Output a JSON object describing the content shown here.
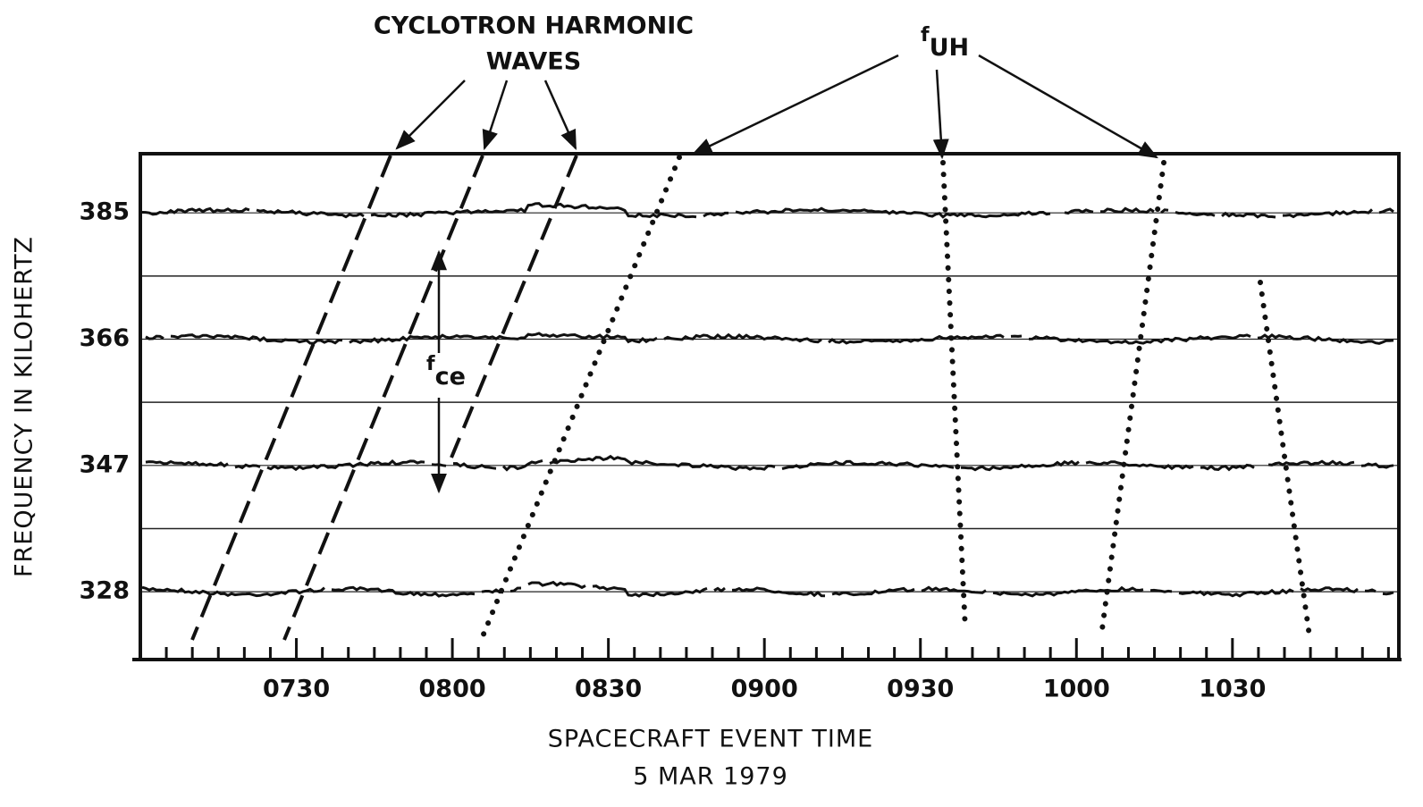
{
  "chart_data": {
    "type": "channel-traces",
    "x_label": "SPACECRAFT EVENT TIME",
    "x_sublabel": "5 MAR 1979",
    "y_label": "FREQUENCY IN KILOHERTZ",
    "xlim": [
      420,
      662
    ],
    "xticks": [
      {
        "value": 450,
        "label": "0730"
      },
      {
        "value": 480,
        "label": "0800"
      },
      {
        "value": 510,
        "label": "0830"
      },
      {
        "value": 540,
        "label": "0900"
      },
      {
        "value": 570,
        "label": "0930"
      },
      {
        "value": 600,
        "label": "1000"
      },
      {
        "value": 630,
        "label": "1030"
      }
    ],
    "xminorticks": [
      425,
      430,
      435,
      440,
      445,
      455,
      460,
      465,
      470,
      475,
      485,
      490,
      495,
      500,
      505,
      515,
      520,
      525,
      530,
      535,
      545,
      550,
      555,
      560,
      565,
      575,
      580,
      585,
      590,
      595,
      605,
      610,
      615,
      620,
      625,
      635,
      640,
      645,
      650,
      655,
      660
    ],
    "ylim": [
      317.8,
      393.9
    ],
    "yticks": [
      328,
      347,
      366,
      385
    ],
    "annotations": {
      "cyclotron": [
        "CYCLOTRON HARMONIC",
        "WAVES"
      ],
      "upper_hybrid": {
        "symbol": "f",
        "subscript": "UH"
      },
      "cyclotron_frequency": {
        "symbol": "f",
        "subscript": "ce"
      }
    }
  }
}
